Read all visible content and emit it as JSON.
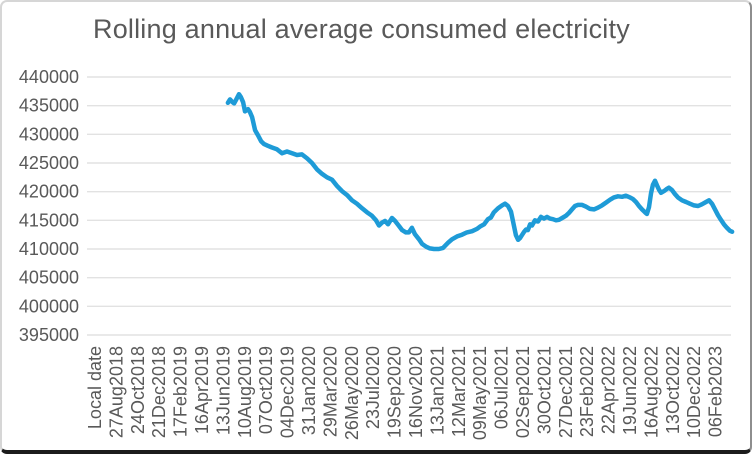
{
  "title": "Rolling annual average consumed electricity",
  "colors": {
    "line": "#1E9BD7",
    "gridline": "#E2E2E2",
    "text": "#595959",
    "background": "#FFFFFF"
  },
  "chart_data": {
    "type": "line",
    "title": "Rolling annual average consumed electricity",
    "xlabel": "",
    "ylabel": "",
    "legend": "none",
    "grid": "horizontal",
    "ylim": [
      395000,
      440000
    ],
    "y_ticks": [
      395000,
      400000,
      405000,
      410000,
      415000,
      420000,
      425000,
      430000,
      435000,
      440000
    ],
    "x_tick_labels": [
      "Local date",
      "27Aug2018",
      "24Oct2018",
      "21Dec2018",
      "17Feb2019",
      "16Apr2019",
      "13Jun2019",
      "10Aug2019",
      "07Oct2019",
      "04Dec2019",
      "31Jan2020",
      "29Mar2020",
      "26May2020",
      "23Jul2020",
      "19Sep2020",
      "16Nov2020",
      "13Jan2021",
      "12Mar2021",
      "09May2021",
      "06Jul2021",
      "02Sep2021",
      "30Oct2021",
      "27Dec2021",
      "23Feb2022",
      "22Apr2022",
      "19Jun2022",
      "16Aug2022",
      "13Oct2022",
      "10Dec2022",
      "06Feb2023"
    ],
    "series": [
      {
        "name": "Rolling annual average consumed electricity",
        "color": "#1E9BD7",
        "points": [
          [
            6.21,
            435500
          ],
          [
            6.31,
            436100
          ],
          [
            6.4,
            435700
          ],
          [
            6.5,
            435400
          ],
          [
            6.59,
            436000
          ],
          [
            6.73,
            437000
          ],
          [
            6.82,
            436500
          ],
          [
            6.92,
            435600
          ],
          [
            7.01,
            434000
          ],
          [
            7.15,
            434400
          ],
          [
            7.24,
            433900
          ],
          [
            7.34,
            433000
          ],
          [
            7.48,
            430700
          ],
          [
            7.62,
            429800
          ],
          [
            7.76,
            428800
          ],
          [
            7.9,
            428300
          ],
          [
            8.08,
            428000
          ],
          [
            8.27,
            427700
          ],
          [
            8.5,
            427400
          ],
          [
            8.74,
            426700
          ],
          [
            8.97,
            427000
          ],
          [
            9.21,
            426700
          ],
          [
            9.44,
            426400
          ],
          [
            9.67,
            426500
          ],
          [
            9.91,
            425800
          ],
          [
            10.14,
            425000
          ],
          [
            10.37,
            423900
          ],
          [
            10.61,
            423100
          ],
          [
            10.84,
            422500
          ],
          [
            11.07,
            422100
          ],
          [
            11.31,
            421000
          ],
          [
            11.54,
            420100
          ],
          [
            11.78,
            419400
          ],
          [
            12.01,
            418500
          ],
          [
            12.24,
            417900
          ],
          [
            12.48,
            417100
          ],
          [
            12.71,
            416400
          ],
          [
            12.94,
            415800
          ],
          [
            13.13,
            415000
          ],
          [
            13.27,
            414100
          ],
          [
            13.41,
            414600
          ],
          [
            13.55,
            414900
          ],
          [
            13.69,
            414300
          ],
          [
            13.88,
            415400
          ],
          [
            14.02,
            414900
          ],
          [
            14.21,
            414000
          ],
          [
            14.35,
            413300
          ],
          [
            14.53,
            412900
          ],
          [
            14.67,
            412900
          ],
          [
            14.81,
            413700
          ],
          [
            14.95,
            412600
          ],
          [
            15.14,
            411700
          ],
          [
            15.28,
            410900
          ],
          [
            15.47,
            410400
          ],
          [
            15.65,
            410100
          ],
          [
            15.84,
            410000
          ],
          [
            16.07,
            410000
          ],
          [
            16.26,
            410200
          ],
          [
            16.5,
            411100
          ],
          [
            16.68,
            411700
          ],
          [
            16.92,
            412200
          ],
          [
            17.15,
            412500
          ],
          [
            17.38,
            412900
          ],
          [
            17.62,
            413100
          ],
          [
            17.85,
            413500
          ],
          [
            17.99,
            413900
          ],
          [
            18.18,
            414300
          ],
          [
            18.36,
            415200
          ],
          [
            18.5,
            415500
          ],
          [
            18.64,
            416400
          ],
          [
            18.83,
            417100
          ],
          [
            19.02,
            417600
          ],
          [
            19.16,
            417900
          ],
          [
            19.3,
            417500
          ],
          [
            19.44,
            416500
          ],
          [
            19.58,
            414000
          ],
          [
            19.67,
            412400
          ],
          [
            19.77,
            411600
          ],
          [
            19.86,
            411900
          ],
          [
            19.95,
            412400
          ],
          [
            20.05,
            413000
          ],
          [
            20.14,
            413400
          ],
          [
            20.23,
            413300
          ],
          [
            20.33,
            414300
          ],
          [
            20.42,
            414100
          ],
          [
            20.56,
            415000
          ],
          [
            20.7,
            414800
          ],
          [
            20.84,
            415600
          ],
          [
            20.98,
            415300
          ],
          [
            21.12,
            415600
          ],
          [
            21.26,
            415300
          ],
          [
            21.4,
            415200
          ],
          [
            21.54,
            415000
          ],
          [
            21.68,
            415100
          ],
          [
            21.87,
            415500
          ],
          [
            22.01,
            415800
          ],
          [
            22.15,
            416300
          ],
          [
            22.29,
            416900
          ],
          [
            22.43,
            417500
          ],
          [
            22.57,
            417700
          ],
          [
            22.76,
            417700
          ],
          [
            22.94,
            417400
          ],
          [
            23.13,
            417000
          ],
          [
            23.32,
            416900
          ],
          [
            23.5,
            417200
          ],
          [
            23.69,
            417600
          ],
          [
            23.88,
            418100
          ],
          [
            24.07,
            418600
          ],
          [
            24.25,
            419000
          ],
          [
            24.44,
            419200
          ],
          [
            24.63,
            419100
          ],
          [
            24.81,
            419300
          ],
          [
            25.0,
            419000
          ],
          [
            25.14,
            418700
          ],
          [
            25.28,
            418200
          ],
          [
            25.42,
            417500
          ],
          [
            25.56,
            416900
          ],
          [
            25.7,
            416400
          ],
          [
            25.79,
            416100
          ],
          [
            25.89,
            417300
          ],
          [
            25.98,
            419700
          ],
          [
            26.07,
            421200
          ],
          [
            26.17,
            421900
          ],
          [
            26.26,
            421100
          ],
          [
            26.36,
            420300
          ],
          [
            26.45,
            419800
          ],
          [
            26.59,
            420100
          ],
          [
            26.73,
            420500
          ],
          [
            26.82,
            420700
          ],
          [
            26.96,
            420300
          ],
          [
            27.1,
            419600
          ],
          [
            27.24,
            419000
          ],
          [
            27.43,
            418500
          ],
          [
            27.62,
            418200
          ],
          [
            27.8,
            417900
          ],
          [
            27.99,
            417600
          ],
          [
            28.18,
            417500
          ],
          [
            28.36,
            417800
          ],
          [
            28.55,
            418200
          ],
          [
            28.69,
            418500
          ],
          [
            28.83,
            417900
          ],
          [
            28.97,
            416900
          ],
          [
            29.11,
            415900
          ],
          [
            29.25,
            415100
          ],
          [
            29.39,
            414300
          ],
          [
            29.53,
            413700
          ],
          [
            29.67,
            413200
          ],
          [
            29.77,
            413000
          ]
        ]
      }
    ]
  }
}
